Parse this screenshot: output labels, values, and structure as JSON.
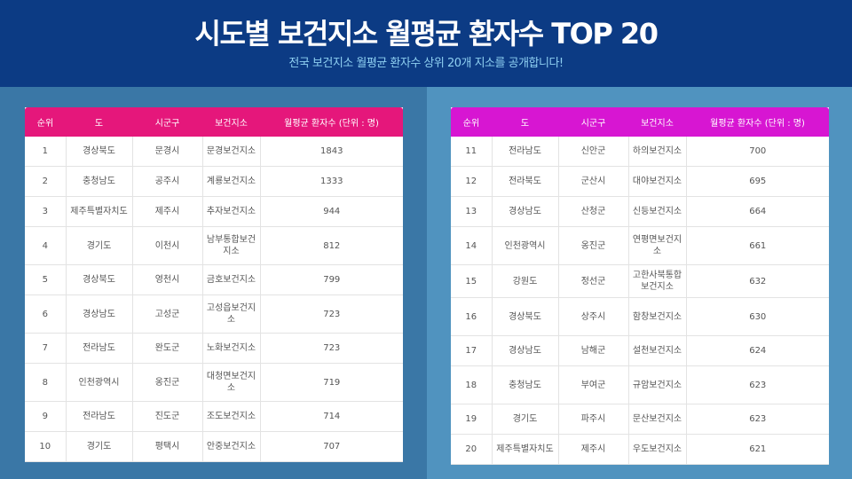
{
  "header": {
    "title": "시도별 보건지소 월평균 환자수 TOP 20",
    "subtitle": "전국 보건지소 월평균 환자수 상위 20개 지소를 공개합니다!"
  },
  "colors": {
    "header_bg": "#0c3b84",
    "left_table_header": "#e5177b",
    "right_table_header": "#d716d2",
    "subtitle": "#8fd0f2"
  },
  "columns": [
    "순위",
    "도",
    "시군구",
    "보건지소",
    "월평균 환자수 (단위 : 명)"
  ],
  "left_rows": [
    [
      "1",
      "경상북도",
      "문경시",
      "문경보건지소",
      "1843"
    ],
    [
      "2",
      "충청남도",
      "공주시",
      "계룡보건지소",
      "1333"
    ],
    [
      "3",
      "제주특별자치도",
      "제주시",
      "추자보건지소",
      "944"
    ],
    [
      "4",
      "경기도",
      "이천시",
      "남부통합보건지소",
      "812"
    ],
    [
      "5",
      "경상북도",
      "영천시",
      "금호보건지소",
      "799"
    ],
    [
      "6",
      "경상남도",
      "고성군",
      "고성읍보건지소",
      "723"
    ],
    [
      "7",
      "전라남도",
      "완도군",
      "노화보건지소",
      "723"
    ],
    [
      "8",
      "인천광역시",
      "옹진군",
      "대청면보건지소",
      "719"
    ],
    [
      "9",
      "전라남도",
      "진도군",
      "조도보건지소",
      "714"
    ],
    [
      "10",
      "경기도",
      "평택시",
      "안중보건지소",
      "707"
    ]
  ],
  "right_rows": [
    [
      "11",
      "전라남도",
      "신안군",
      "하의보건지소",
      "700"
    ],
    [
      "12",
      "전라북도",
      "군산시",
      "대야보건지소",
      "695"
    ],
    [
      "13",
      "경상남도",
      "산청군",
      "신등보건지소",
      "664"
    ],
    [
      "14",
      "인천광역시",
      "옹진군",
      "연평면보건지소",
      "661"
    ],
    [
      "15",
      "강원도",
      "정선군",
      "고한사북통합보건지소",
      "632"
    ],
    [
      "16",
      "경상북도",
      "상주시",
      "함창보건지소",
      "630"
    ],
    [
      "17",
      "경상남도",
      "남해군",
      "설천보건지소",
      "624"
    ],
    [
      "18",
      "충청남도",
      "부여군",
      "규암보건지소",
      "623"
    ],
    [
      "19",
      "경기도",
      "파주시",
      "문산보건지소",
      "623"
    ],
    [
      "20",
      "제주특별자치도",
      "제주시",
      "우도보건지소",
      "621"
    ]
  ]
}
